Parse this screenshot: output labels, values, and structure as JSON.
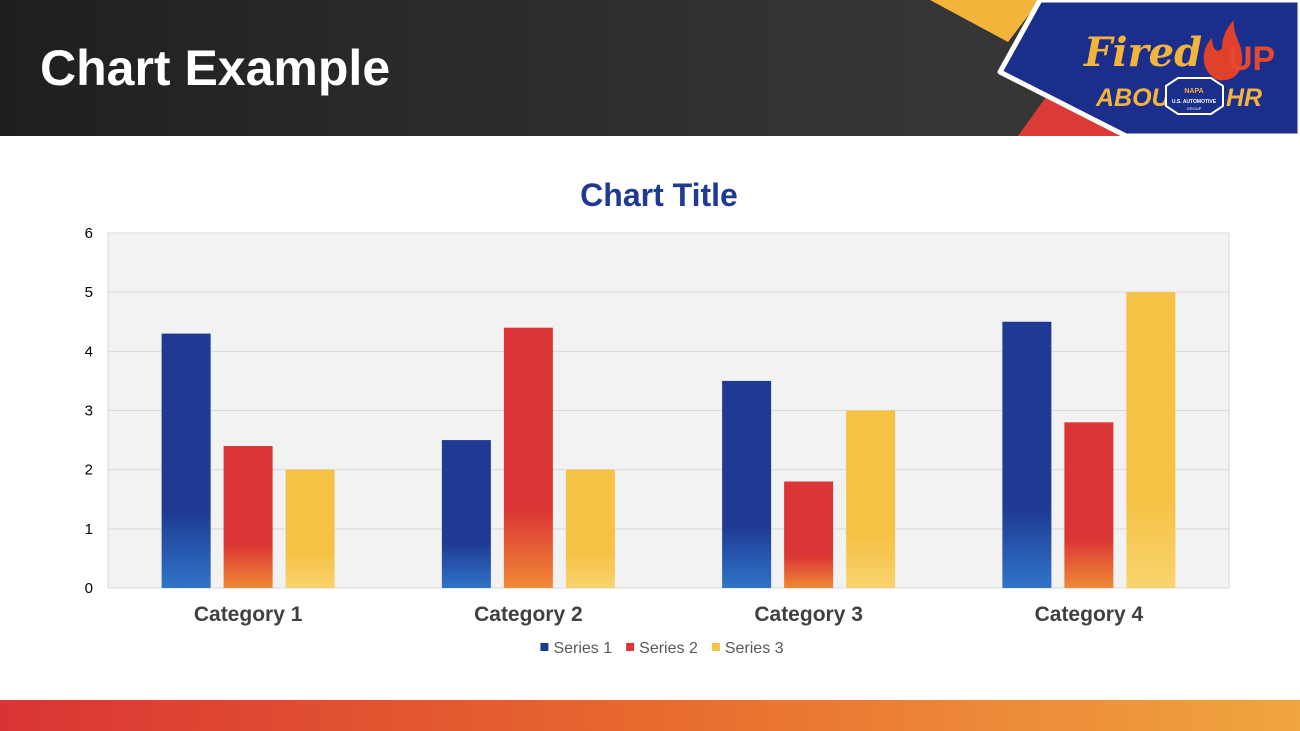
{
  "slide": {
    "title": "Chart Example"
  },
  "brand": {
    "logo_line1": "Fired",
    "logo_up": "UP",
    "logo_about": "ABOUT",
    "logo_hr": "HR",
    "logo_badge_name": "NAPA",
    "logo_badge_text": "U.S. AUTOMOTIVE",
    "logo_badge_sub": "GROUP",
    "colors": {
      "navy": "#1c2e8c",
      "red": "#dc3a35",
      "orange": "#ee7d32",
      "gold": "#f3b43c"
    }
  },
  "chart_data": {
    "type": "bar",
    "title": "Chart Title",
    "categories": [
      "Category 1",
      "Category 2",
      "Category 3",
      "Category 4"
    ],
    "series": [
      {
        "name": "Series 1",
        "values": [
          4.3,
          2.5,
          3.5,
          4.5
        ],
        "color_top": "#1f3a93",
        "color_bottom": "#2f74c8"
      },
      {
        "name": "Series 2",
        "values": [
          2.4,
          4.4,
          1.8,
          2.8
        ],
        "color_top": "#dc3535",
        "color_bottom": "#ef8a35"
      },
      {
        "name": "Series 3",
        "values": [
          2.0,
          2.0,
          3.0,
          5.0
        ],
        "color_top": "#f5c244",
        "color_bottom": "#f8d36d"
      }
    ],
    "ylim": [
      0,
      6
    ],
    "yticks": [
      "0",
      "1",
      "2",
      "3",
      "4",
      "5",
      "6"
    ],
    "grid": true,
    "legend": "bottom",
    "colors": {
      "title": "#1f3a93",
      "plot_bg": "#f2f2f2",
      "grid": "#d9d9d9",
      "axis_text": "#000000",
      "category_text": "#404040",
      "legend_text": "#595959"
    }
  }
}
